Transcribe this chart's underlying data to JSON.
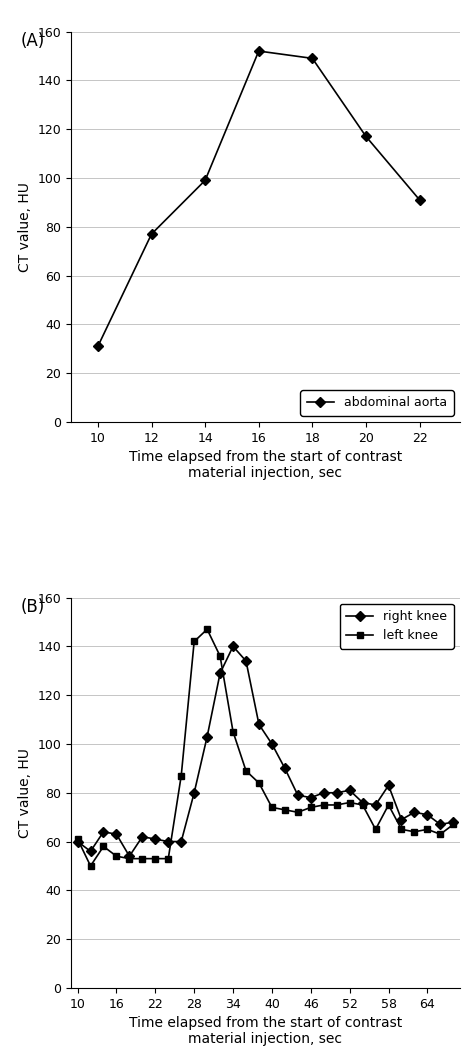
{
  "panel_A": {
    "x": [
      10,
      12,
      14,
      16,
      18,
      20,
      22
    ],
    "y_aorta": [
      31,
      77,
      99,
      152,
      149,
      117,
      91
    ],
    "label_aorta": "abdominal aorta",
    "ylabel": "CT value, HU",
    "xlabel_line1": "Time elapsed from the start of contrast",
    "xlabel_line2": "material injection, sec",
    "panel_label": "(A)",
    "ylim": [
      0,
      160
    ],
    "yticks": [
      0,
      20,
      40,
      60,
      80,
      100,
      120,
      140,
      160
    ],
    "xticks": [
      10,
      12,
      14,
      16,
      18,
      20,
      22
    ],
    "xlim": [
      9,
      23.5
    ]
  },
  "panel_B": {
    "x": [
      10,
      12,
      14,
      16,
      18,
      20,
      22,
      24,
      26,
      28,
      30,
      32,
      34,
      36,
      38,
      40,
      42,
      44,
      46,
      48,
      50,
      52,
      54,
      56,
      58,
      60,
      62,
      64,
      66,
      68
    ],
    "y_right": [
      60,
      56,
      64,
      63,
      54,
      62,
      61,
      60,
      60,
      80,
      103,
      129,
      140,
      134,
      108,
      100,
      90,
      79,
      78,
      80,
      80,
      81,
      76,
      75,
      83,
      69,
      72,
      71,
      67,
      68
    ],
    "y_left": [
      61,
      50,
      58,
      54,
      53,
      53,
      53,
      53,
      87,
      142,
      147,
      136,
      105,
      89,
      84,
      74,
      73,
      72,
      74,
      75,
      75,
      76,
      75,
      65,
      75,
      65,
      64,
      65,
      63,
      67
    ],
    "label_right": "right knee",
    "label_left": "left knee",
    "ylabel": "CT value, HU",
    "xlabel_line1": "Time elapsed from the start of contrast",
    "xlabel_line2": "material injection, sec",
    "panel_label": "(B)",
    "ylim": [
      0,
      160
    ],
    "yticks": [
      0,
      20,
      40,
      60,
      80,
      100,
      120,
      140,
      160
    ],
    "xticks": [
      10,
      16,
      22,
      28,
      34,
      40,
      46,
      52,
      58,
      64
    ],
    "xlim": [
      9,
      69
    ]
  },
  "line_color": "#000000",
  "marker_diamond": "D",
  "marker_square": "s",
  "markersize": 5,
  "linewidth": 1.2,
  "fontsize_label": 10,
  "fontsize_tick": 9,
  "fontsize_panel": 12,
  "fontsize_legend": 9,
  "bg_color": "#ffffff",
  "grid_color": "#bbbbbb",
  "grid_linewidth": 0.6
}
